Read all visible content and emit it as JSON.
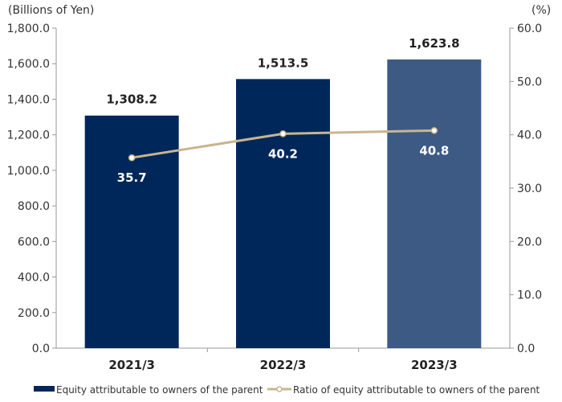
{
  "chart_data": {
    "type": "bar",
    "categories": [
      "2021/3",
      "2022/3",
      "2023/3"
    ],
    "series": [
      {
        "name": "Equity attributable to owners of the parent",
        "type": "bar",
        "axis": "left",
        "values": [
          1308.2,
          1513.5,
          1623.8
        ],
        "labels": [
          "1,308.2",
          "1,513.5",
          "1,623.8"
        ],
        "colors": [
          "#00275a",
          "#00275a",
          "#3d5a85"
        ]
      },
      {
        "name": "Ratio of equity attributable to owners of the parent",
        "type": "line",
        "axis": "right",
        "values": [
          35.7,
          40.2,
          40.8
        ],
        "labels": [
          "35.7",
          "40.2",
          "40.8"
        ],
        "color": "#c8b58e"
      }
    ],
    "left_axis": {
      "unit": "(Billions of Yen)",
      "ylim": [
        0,
        1800
      ],
      "ticks": [
        "0.0",
        "200.0",
        "400.0",
        "600.0",
        "800.0",
        "1,000.0",
        "1,200.0",
        "1,400.0",
        "1,600.0",
        "1,800.0"
      ]
    },
    "right_axis": {
      "unit": "(%)",
      "ylim": [
        0,
        60
      ],
      "ticks": [
        "0.0",
        "10.0",
        "20.0",
        "30.0",
        "40.0",
        "50.0",
        "60.0"
      ]
    },
    "grid": false,
    "legend_position": "bottom"
  }
}
